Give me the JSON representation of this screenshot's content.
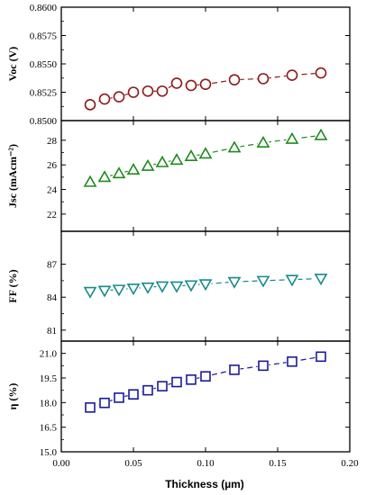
{
  "chart_data": {
    "type": "scatter",
    "x_label": "Thickness (µm)",
    "x_range": [
      0.0,
      0.2
    ],
    "x_ticks": [
      "0.00",
      "0.05",
      "0.10",
      "0.15",
      "0.20"
    ],
    "x": [
      0.02,
      0.03,
      0.04,
      0.05,
      0.06,
      0.07,
      0.08,
      0.09,
      0.1,
      0.12,
      0.14,
      0.16,
      0.18
    ],
    "panels": [
      {
        "id": "voc",
        "ylabel": "Voc (V)",
        "ylim": [
          0.85,
          0.86
        ],
        "yticks": [
          "0.8500",
          "0.8525",
          "0.8550",
          "0.8575",
          "0.8600"
        ],
        "marker": "circle",
        "color": "#8b1a1a",
        "values": [
          0.8514,
          0.8519,
          0.8521,
          0.8525,
          0.8526,
          0.8526,
          0.8533,
          0.8531,
          0.8532,
          0.8536,
          0.8537,
          0.854,
          0.8542
        ]
      },
      {
        "id": "jsc",
        "ylabel": "Jsc (mAcm⁻²)",
        "ylim": [
          20.6,
          29.6
        ],
        "yticks": [
          "22",
          "24",
          "26",
          "28"
        ],
        "marker": "triangle-up",
        "color": "#1f8a1f",
        "values": [
          24.6,
          25.0,
          25.3,
          25.6,
          25.9,
          26.2,
          26.4,
          26.7,
          26.9,
          27.4,
          27.8,
          28.1,
          28.4
        ]
      },
      {
        "id": "ff",
        "ylabel": "FF (%)",
        "ylim": [
          80.0,
          90.0
        ],
        "yticks": [
          "81",
          "84",
          "87"
        ],
        "marker": "triangle-down",
        "color": "#1a8a8a",
        "values": [
          84.5,
          84.6,
          84.7,
          84.8,
          84.9,
          85.0,
          85.0,
          85.1,
          85.2,
          85.4,
          85.5,
          85.6,
          85.7
        ]
      },
      {
        "id": "eta",
        "ylabel": "η (%)",
        "ylim": [
          15.0,
          21.75
        ],
        "yticks": [
          "15.0",
          "16.5",
          "18.0",
          "19.5",
          "21.0"
        ],
        "marker": "square",
        "color": "#1a1a9a",
        "values": [
          17.7,
          17.98,
          18.3,
          18.5,
          18.75,
          19.0,
          19.25,
          19.4,
          19.6,
          20.0,
          20.25,
          20.5,
          20.8
        ]
      }
    ]
  }
}
